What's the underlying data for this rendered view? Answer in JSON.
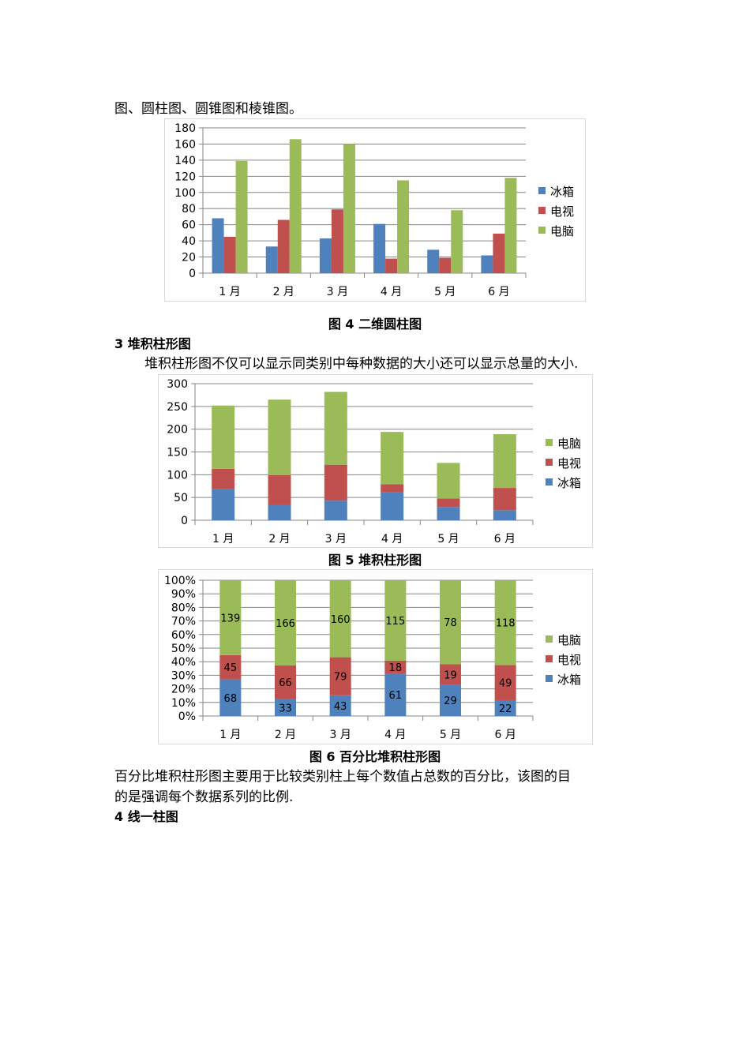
{
  "document": {
    "intro_line": "图、圆柱图、圆锥图和棱锥图。",
    "fig4_caption": "图 4 二维圆柱图",
    "section3_heading": "3 堆积柱形图",
    "section3_paragraph": "堆积柱形图不仅可以显示同类别中每种数据的大小还可以显示总量的大小.",
    "fig5_caption": "图 5 堆积柱形图",
    "fig6_caption": "图 6 百分比堆积柱形图",
    "percent_paragraph_line1": "百分比堆积柱形图主要用于比较类别柱上每个数值占总数的百分比，该图的目",
    "percent_paragraph_line2": "的是强调每个数据系列的比例.",
    "section4_heading": "4 线一柱图"
  },
  "colors": {
    "冰箱": "#4f81bd",
    "电视": "#c0504d",
    "电脑": "#9bbb59",
    "gridline": "#868686",
    "frame": "#d9d9d9"
  },
  "chart_data": [
    {
      "type": "bar",
      "title": "图 4 二维圆柱图",
      "categories": [
        "1月",
        "2月",
        "3月",
        "4月",
        "5月",
        "6月"
      ],
      "series": [
        {
          "name": "冰箱",
          "values": [
            68,
            33,
            43,
            61,
            29,
            22
          ]
        },
        {
          "name": "电视",
          "values": [
            45,
            66,
            79,
            18,
            19,
            49
          ]
        },
        {
          "name": "电脑",
          "values": [
            139,
            166,
            160,
            115,
            78,
            118
          ]
        }
      ],
      "xlabel": "",
      "ylabel": "",
      "ylim": [
        0,
        180
      ],
      "yticks": [
        "0",
        "20",
        "40",
        "60",
        "80",
        "100",
        "120",
        "140",
        "160",
        "180"
      ],
      "grid": true,
      "legend_position": "right",
      "legend": [
        "冰箱",
        "电视",
        "电脑"
      ]
    },
    {
      "type": "bar",
      "stacked": true,
      "title": "图 5 堆积柱形图",
      "categories": [
        "1月",
        "2月",
        "3月",
        "4月",
        "5月",
        "6月"
      ],
      "series": [
        {
          "name": "冰箱",
          "values": [
            68,
            33,
            43,
            61,
            29,
            22
          ]
        },
        {
          "name": "电视",
          "values": [
            45,
            66,
            79,
            18,
            19,
            49
          ]
        },
        {
          "name": "电脑",
          "values": [
            139,
            166,
            160,
            115,
            78,
            118
          ]
        }
      ],
      "xlabel": "",
      "ylabel": "",
      "ylim": [
        0,
        300
      ],
      "yticks": [
        "0",
        "50",
        "100",
        "150",
        "200",
        "250",
        "300"
      ],
      "grid": true,
      "legend_position": "right",
      "legend": [
        "电脑",
        "电视",
        "冰箱"
      ]
    },
    {
      "type": "bar",
      "stacked": "percent",
      "title": "图 6 百分比堆积柱形图",
      "categories": [
        "1月",
        "2月",
        "3月",
        "4月",
        "5月",
        "6月"
      ],
      "series": [
        {
          "name": "冰箱",
          "values": [
            68,
            33,
            43,
            61,
            29,
            22
          ]
        },
        {
          "name": "电视",
          "values": [
            45,
            66,
            79,
            18,
            19,
            49
          ]
        },
        {
          "name": "电脑",
          "values": [
            139,
            166,
            160,
            115,
            78,
            118
          ]
        }
      ],
      "data_labels": true,
      "xlabel": "",
      "ylabel": "",
      "ylim": [
        0,
        100
      ],
      "yticks": [
        "0%",
        "10%",
        "20%",
        "30%",
        "40%",
        "50%",
        "60%",
        "70%",
        "80%",
        "90%",
        "100%"
      ],
      "grid": true,
      "legend_position": "right",
      "legend": [
        "电脑",
        "电视",
        "冰箱"
      ]
    }
  ]
}
